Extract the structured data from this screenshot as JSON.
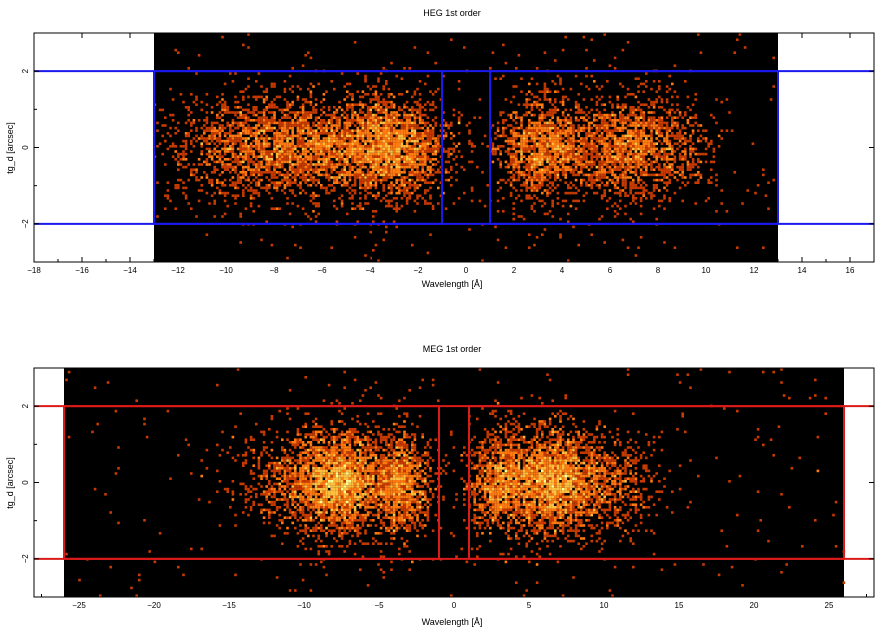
{
  "chart_data": [
    {
      "type": "heatmap",
      "title": "HEG 1st order",
      "xlabel": "Wavelength [Å]",
      "ylabel": "tg_d [arcsec]",
      "xlim": [
        -18,
        17
      ],
      "ylim": [
        -3,
        3
      ],
      "x_ticks": [
        -18,
        -16,
        -14,
        -12,
        -10,
        -8,
        -6,
        -4,
        -2,
        0,
        2,
        4,
        6,
        8,
        10,
        12,
        14,
        16
      ],
      "y_ticks": [
        -2,
        0,
        2
      ],
      "data_x_range": [
        -13,
        13
      ],
      "regions": [
        {
          "x": [
            -13,
            -1
          ],
          "y": [
            -2,
            2
          ]
        },
        {
          "x": [
            1,
            13
          ],
          "y": [
            -2,
            2
          ]
        }
      ],
      "region_y_extent_full_width": true,
      "region_color": "#1a1aee",
      "background_color": "#000000",
      "colormap": [
        "#5a1500",
        "#c83a00",
        "#ff7a10",
        "#ffc040",
        "#ffff90",
        "#ffffff"
      ],
      "clusters": [
        {
          "center": -3,
          "spread": 1.1,
          "peak": 1.0
        },
        {
          "center": -6,
          "spread": 2.2,
          "peak": 0.75
        },
        {
          "center": -9.5,
          "spread": 1.6,
          "peak": 0.35
        },
        {
          "center": 3.2,
          "spread": 1.0,
          "peak": 1.0
        },
        {
          "center": 6.5,
          "spread": 1.0,
          "peak": 0.8
        },
        {
          "center": 8.5,
          "spread": 1.0,
          "peak": 0.35
        }
      ]
    },
    {
      "type": "heatmap",
      "title": "MEG 1st order",
      "xlabel": "Wavelength [Å]",
      "ylabel": "tg_d [arcsec]",
      "xlim": [
        -28,
        28
      ],
      "ylim": [
        -3,
        3
      ],
      "x_ticks": [
        -25,
        -20,
        -15,
        -10,
        -5,
        0,
        5,
        10,
        15,
        20,
        25
      ],
      "y_ticks": [
        -2,
        0,
        2
      ],
      "data_x_range": [
        -26,
        26
      ],
      "regions": [
        {
          "x": [
            -26,
            -1
          ],
          "y": [
            -2,
            2
          ]
        },
        {
          "x": [
            1,
            26
          ],
          "y": [
            -2,
            2
          ]
        }
      ],
      "region_y_extent_full_width": true,
      "region_color": "#dd1a1a",
      "background_color": "#000000",
      "colormap": [
        "#5a1500",
        "#c83a00",
        "#ff7a10",
        "#ffc040",
        "#ffff90",
        "#ffffff"
      ],
      "clusters": [
        {
          "center": -7.5,
          "spread": 1.4,
          "peak": 1.0
        },
        {
          "center": -3.5,
          "spread": 1.0,
          "peak": 0.8
        },
        {
          "center": -10,
          "spread": 2.2,
          "peak": 0.3
        },
        {
          "center": 6.5,
          "spread": 1.4,
          "peak": 1.0
        },
        {
          "center": 3,
          "spread": 1.1,
          "peak": 0.7
        },
        {
          "center": 10,
          "spread": 1.8,
          "peak": 0.3
        }
      ]
    }
  ]
}
